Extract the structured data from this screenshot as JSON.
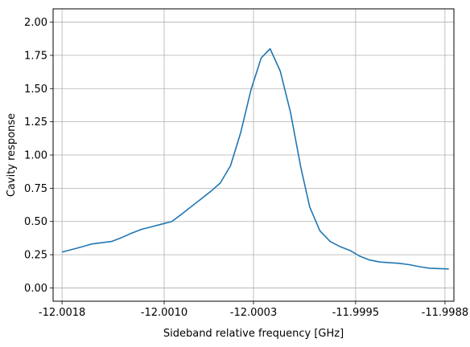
{
  "chart_data": {
    "type": "line",
    "title": "",
    "xlabel": "Sideband relative frequency [GHz]",
    "ylabel": "Cavity response",
    "xlim": [
      -12.00187,
      -11.99873
    ],
    "ylim": [
      -0.1,
      2.1
    ],
    "grid": true,
    "x_ticks": [
      -12.0018,
      -12.001,
      -12.0003,
      -11.9995,
      -11.9988
    ],
    "x_tick_labels": [
      "-12.0018",
      "-12.0010",
      "-12.0003",
      "-11.9995",
      "-11.9988"
    ],
    "y_ticks": [
      0.0,
      0.25,
      0.5,
      0.75,
      1.0,
      1.25,
      1.5,
      1.75,
      2.0
    ],
    "y_tick_labels": [
      "0.00",
      "0.25",
      "0.50",
      "0.75",
      "1.00",
      "1.25",
      "1.50",
      "1.75",
      "2.00"
    ],
    "series": [
      {
        "color": "#1f77b4",
        "x": [
          -12.0018,
          -12.00172,
          -12.00164,
          -12.00157,
          -12.00149,
          -12.00141,
          -12.00133,
          -12.00126,
          -12.00118,
          -12.0011,
          -12.00102,
          -12.00094,
          -12.00087,
          -12.00079,
          -12.00071,
          -12.00063,
          -12.00056,
          -12.00048,
          -12.0004,
          -12.00032,
          -12.00024,
          -12.00017,
          -12.00009,
          -12.00001,
          -11.99993,
          -11.99986,
          -11.99978,
          -11.9997,
          -11.99962,
          -11.99954,
          -11.99947,
          -11.99939,
          -11.99931,
          -11.99923,
          -11.99916,
          -11.99908,
          -11.999,
          -11.99892,
          -11.99884,
          -11.99877
        ],
        "y": [
          0.27,
          0.29,
          0.31,
          0.33,
          0.34,
          0.35,
          0.38,
          0.41,
          0.44,
          0.46,
          0.48,
          0.5,
          0.55,
          0.61,
          0.67,
          0.73,
          0.79,
          0.92,
          1.17,
          1.49,
          1.73,
          1.8,
          1.63,
          1.32,
          0.91,
          0.61,
          0.43,
          0.35,
          0.31,
          0.28,
          0.24,
          0.21,
          0.195,
          0.19,
          0.185,
          0.175,
          0.16,
          0.148,
          0.145,
          0.143
        ]
      }
    ]
  }
}
